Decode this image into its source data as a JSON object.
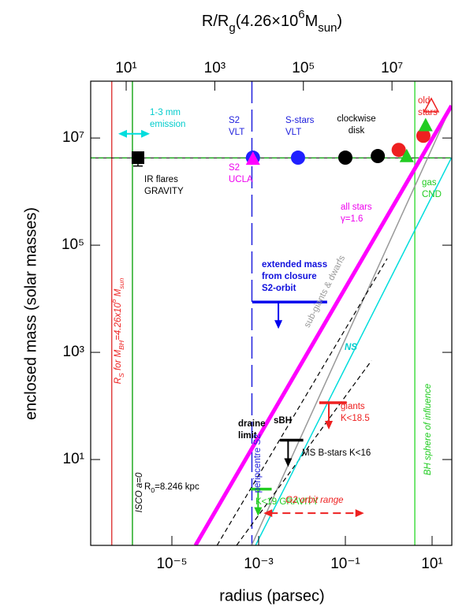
{
  "chart_data": {
    "type": "scatter",
    "xlabel": "radius (parsec)",
    "ylabel": "enclosed mass (solar masses)",
    "x2label": {
      "segments": [
        {
          "text": "R/R"
        },
        {
          "text": "g",
          "shift": "sub"
        },
        {
          "text": "(4.26×10"
        },
        {
          "text": "6",
          "shift": "sup"
        },
        {
          "text": "M"
        },
        {
          "text": "sun",
          "shift": "sub"
        },
        {
          "text": ")"
        }
      ]
    },
    "xscale": "log",
    "yscale": "log",
    "xlim": [
      1.34e-07,
      28.5
    ],
    "ylim": [
      0.25,
      115000000.0
    ],
    "x2lim": [
      1.58,
      224000000.0
    ],
    "xticks": [
      {
        "value": 1e-05,
        "label": "10⁻⁵"
      },
      {
        "value": 0.001,
        "label": "10⁻³"
      },
      {
        "value": 0.1,
        "label": "10⁻¹"
      },
      {
        "value": 10,
        "label": "10¹"
      }
    ],
    "yticks": [
      {
        "value": 10,
        "label": "10¹"
      },
      {
        "value": 1000,
        "label": "10³"
      },
      {
        "value": 100000,
        "label": "10⁵"
      },
      {
        "value": 10000000,
        "label": "10⁷"
      }
    ],
    "x2ticks": [
      {
        "value": 10,
        "label": "10¹"
      },
      {
        "value": 1000,
        "label": "10³"
      },
      {
        "value": 100000,
        "label": "10⁵"
      },
      {
        "value": 10000000,
        "label": "10⁷"
      }
    ],
    "hline": {
      "value": 4260000,
      "color": "#22aa22"
    },
    "vlines": [
      {
        "x": 4.1e-07,
        "color": "#e04040",
        "style": "solid"
      },
      {
        "x": 1.23e-06,
        "color": "#22aa22",
        "style": "solid"
      },
      {
        "x": 0.0007,
        "color": "#2020dd",
        "style": "dashed"
      },
      {
        "x": 4,
        "color": "#44dd44",
        "style": "solid"
      }
    ],
    "lines": [
      {
        "color": "#999999",
        "style": "solid",
        "width": 1.5,
        "x": [
          0.00069,
          25
        ],
        "values": [
          0.25,
          33000000
        ]
      },
      {
        "color": "#000000",
        "style": "dashed",
        "width": 1.2,
        "x": [
          0.00011,
          0.92
        ],
        "values": [
          0.25,
          56000
        ]
      },
      {
        "color": "#000000",
        "style": "dashed",
        "width": 1.2,
        "x": [
          0.00031,
          0.4
        ],
        "values": [
          0.25,
          700
        ]
      },
      {
        "color": "#00dddd",
        "style": "solid",
        "width": 1.5,
        "x": [
          0.00085,
          28
        ],
        "values": [
          0.25,
          4300000
        ]
      },
      {
        "color": "#ff00ff",
        "style": "solid",
        "width": 5,
        "x": [
          3.5e-05,
          28
        ],
        "values": [
          0.25,
          40000000
        ]
      }
    ],
    "series": [
      {
        "marker": "square",
        "color": "#000000",
        "x": [
          1.65e-06
        ],
        "values": [
          4300000
        ],
        "yerr": [
          1300000
        ]
      },
      {
        "marker": "circle",
        "color": "#2020ff",
        "x": [
          0.00074,
          0.0081
        ],
        "values": [
          4300000,
          4300000
        ]
      },
      {
        "marker": "triangle",
        "color": "#ff00ff",
        "x": [
          0.00074
        ],
        "values": [
          4000000
        ]
      },
      {
        "marker": "circle",
        "color": "#000000",
        "x": [
          0.1,
          0.56
        ],
        "values": [
          4300000,
          4600000
        ]
      },
      {
        "marker": "circle",
        "color": "#ee2020",
        "x": [
          1.7,
          6.3
        ],
        "values": [
          6000000,
          11000000
        ]
      },
      {
        "marker": "triangle",
        "color": "#22cc22",
        "x": [
          2.6,
          7.1
        ],
        "values": [
          4500000,
          17000000
        ]
      },
      {
        "marker": "triangle-open",
        "color": "#ee2020",
        "x": [
          9.6
        ],
        "values": [
          39000000
        ]
      }
    ],
    "limits": [
      {
        "color": "#0000ee",
        "x": [
          0.00071,
          0.038
        ],
        "value": 8700
      },
      {
        "color": "#ee2020",
        "x": [
          0.025,
          0.107
        ],
        "value": 115
      },
      {
        "color": "#000000",
        "x": [
          0.0031,
          0.0107
        ],
        "value": 23
      },
      {
        "color": "#22cc22",
        "x": [
          0.00066,
          0.002
        ],
        "value": 2.8
      }
    ],
    "ranges": [
      {
        "color": "#00dddd",
        "style": "solid",
        "x": [
          5.8e-07,
          3.1e-06
        ],
        "value": 12000000
      },
      {
        "color": "#ee2020",
        "style": "dashed",
        "x": [
          0.0013,
          0.27
        ],
        "value": 1
      }
    ],
    "annotations": [
      {
        "lines": [
          "1-3 mm",
          "emission"
        ],
        "color": "#00cccc"
      },
      {
        "lines": [
          "IR flares",
          "GRAVITY"
        ],
        "color": "#000000"
      },
      {
        "lines": [
          "S2",
          "VLT"
        ],
        "color": "#2020dd"
      },
      {
        "lines": [
          "S2",
          "UCLA"
        ],
        "color": "#ee00ee"
      },
      {
        "lines": [
          "S-stars",
          "VLT"
        ],
        "color": "#2020dd"
      },
      {
        "lines": [
          "clockwise",
          "disk"
        ],
        "color": "#000000"
      },
      {
        "lines": [
          "old",
          "stars"
        ],
        "color": "#ee2020"
      },
      {
        "lines": [
          "gas",
          "CND"
        ],
        "color": "#22cc22"
      },
      {
        "lines": [
          "all stars",
          "γ=1.6"
        ],
        "color": "#ee00ee"
      },
      {
        "lines": [
          "extended mass",
          "from closure",
          "S2-orbit"
        ],
        "color": "#1010dd",
        "weight": "bold"
      },
      {
        "lines": [
          "draine",
          "limit"
        ],
        "color": "#000000",
        "weight": "bold"
      },
      {
        "lines": [
          "sBH"
        ],
        "color": "#000000",
        "weight": "bold"
      },
      {
        "lines": [
          "giants",
          "K<18.5"
        ],
        "color": "#ee2020"
      },
      {
        "lines": [
          "MS B-stars K<16"
        ],
        "color": "#000000"
      },
      {
        "lines": [
          "K<19 GRAVITY"
        ],
        "color": "#22cc22"
      },
      {
        "lines": [
          "G2 orbit range"
        ],
        "color": "#ee2020",
        "italic": true
      },
      {
        "lines": [
          "NS"
        ],
        "color": "#00cccc",
        "italic": true,
        "weight": "bold"
      },
      {
        "lines": [
          "peripcentre S2"
        ],
        "color": "#2020dd"
      },
      {
        "lines": [
          "sub-giants & dwarfs"
        ],
        "color": "#999999"
      },
      {
        "lines": [
          "BH sphere of influence"
        ],
        "color": "#22cc22",
        "italic": true
      },
      {
        "lines": [
          "ISCO a=0"
        ],
        "color": "#000000",
        "italic": true
      },
      {
        "segments": [
          {
            "text": "R"
          },
          {
            "text": "S",
            "shift": "sub"
          },
          {
            "text": " for M"
          },
          {
            "text": "BH",
            "shift": "sub"
          },
          {
            "text": "=4.26x10"
          },
          {
            "text": "6",
            "shift": "sup"
          },
          {
            "text": " M"
          },
          {
            "text": "sun",
            "shift": "sub"
          }
        ],
        "color": "#ee2020",
        "italic": true
      },
      {
        "segments": [
          {
            "text": "R"
          },
          {
            "text": "0",
            "shift": "sub"
          },
          {
            "text": "=8.246 kpc"
          }
        ],
        "color": "#000000"
      }
    ]
  }
}
